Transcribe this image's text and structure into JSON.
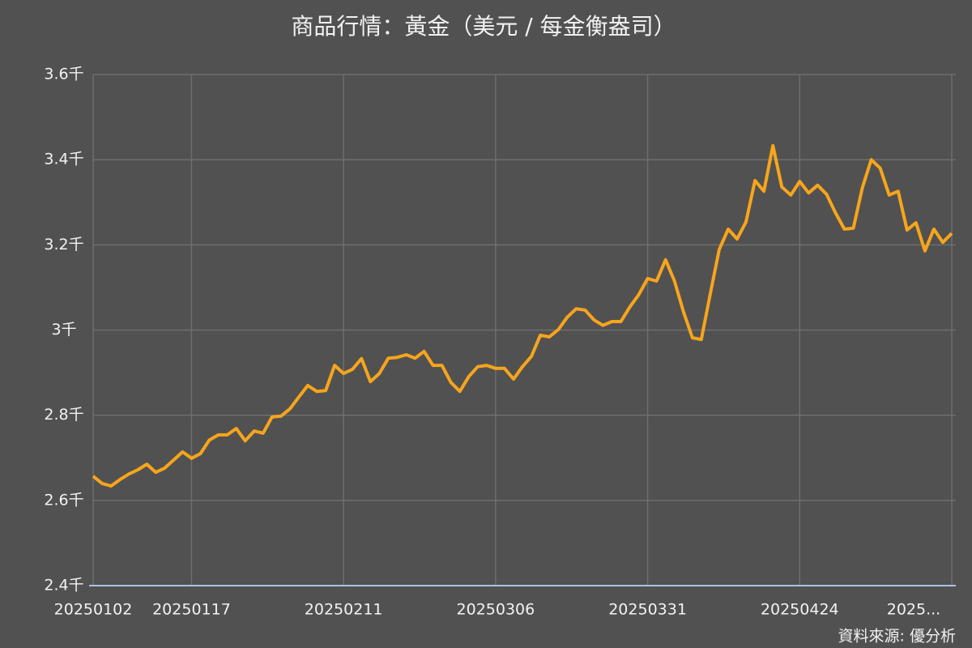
{
  "chart_data": {
    "type": "line",
    "title": "商品行情：黃金（美元 / 每金衡盎司）",
    "source": "資料來源: 優分析",
    "categories": [
      "20250102",
      null,
      null,
      null,
      null,
      null,
      null,
      null,
      null,
      null,
      null,
      "20250117",
      null,
      null,
      null,
      null,
      null,
      null,
      null,
      null,
      null,
      null,
      null,
      null,
      null,
      null,
      null,
      null,
      "20250211",
      null,
      null,
      null,
      null,
      null,
      null,
      null,
      null,
      null,
      null,
      null,
      null,
      null,
      null,
      null,
      null,
      "20250306",
      null,
      null,
      null,
      null,
      null,
      null,
      null,
      null,
      null,
      null,
      null,
      null,
      null,
      null,
      null,
      null,
      "20250331",
      null,
      null,
      null,
      null,
      null,
      null,
      null,
      null,
      null,
      null,
      null,
      null,
      null,
      null,
      null,
      null,
      "20250424",
      null,
      null,
      null,
      null,
      null,
      null,
      null,
      null,
      null,
      null,
      null,
      null,
      null,
      null,
      null,
      null,
      "2025..."
    ],
    "series": [
      {
        "name": "黃金",
        "color": "#f7a51c",
        "values": [
          2657,
          2640,
          2634,
          2649,
          2662,
          2672,
          2685,
          2666,
          2676,
          2695,
          2714,
          2699,
          2710,
          2742,
          2754,
          2754,
          2769,
          2740,
          2763,
          2758,
          2796,
          2798,
          2815,
          2843,
          2870,
          2856,
          2858,
          2917,
          2898,
          2908,
          2933,
          2879,
          2898,
          2934,
          2936,
          2942,
          2934,
          2950,
          2917,
          2917,
          2877,
          2856,
          2891,
          2914,
          2917,
          2910,
          2910,
          2885,
          2914,
          2938,
          2988,
          2984,
          3001,
          3030,
          3050,
          3047,
          3024,
          3011,
          3020,
          3020,
          3054,
          3083,
          3121,
          3115,
          3165,
          3115,
          3043,
          2982,
          2978,
          3085,
          3189,
          3237,
          3214,
          3254,
          3351,
          3326,
          3433,
          3336,
          3317,
          3349,
          3322,
          3340,
          3319,
          3275,
          3237,
          3239,
          3334,
          3400,
          3380,
          3317,
          3326,
          3235,
          3252,
          3186,
          3237,
          3206,
          3227
        ]
      }
    ],
    "ylim": [
      2400,
      3600
    ],
    "yticks": [
      {
        "value": 2400,
        "label": "2.4千"
      },
      {
        "value": 2600,
        "label": "2.6千"
      },
      {
        "value": 2800,
        "label": "2.8千"
      },
      {
        "value": 3000,
        "label": "3千"
      },
      {
        "value": 3200,
        "label": "3.2千"
      },
      {
        "value": 3400,
        "label": "3.4千"
      },
      {
        "value": 3600,
        "label": "3.6千"
      }
    ],
    "grid": true
  }
}
